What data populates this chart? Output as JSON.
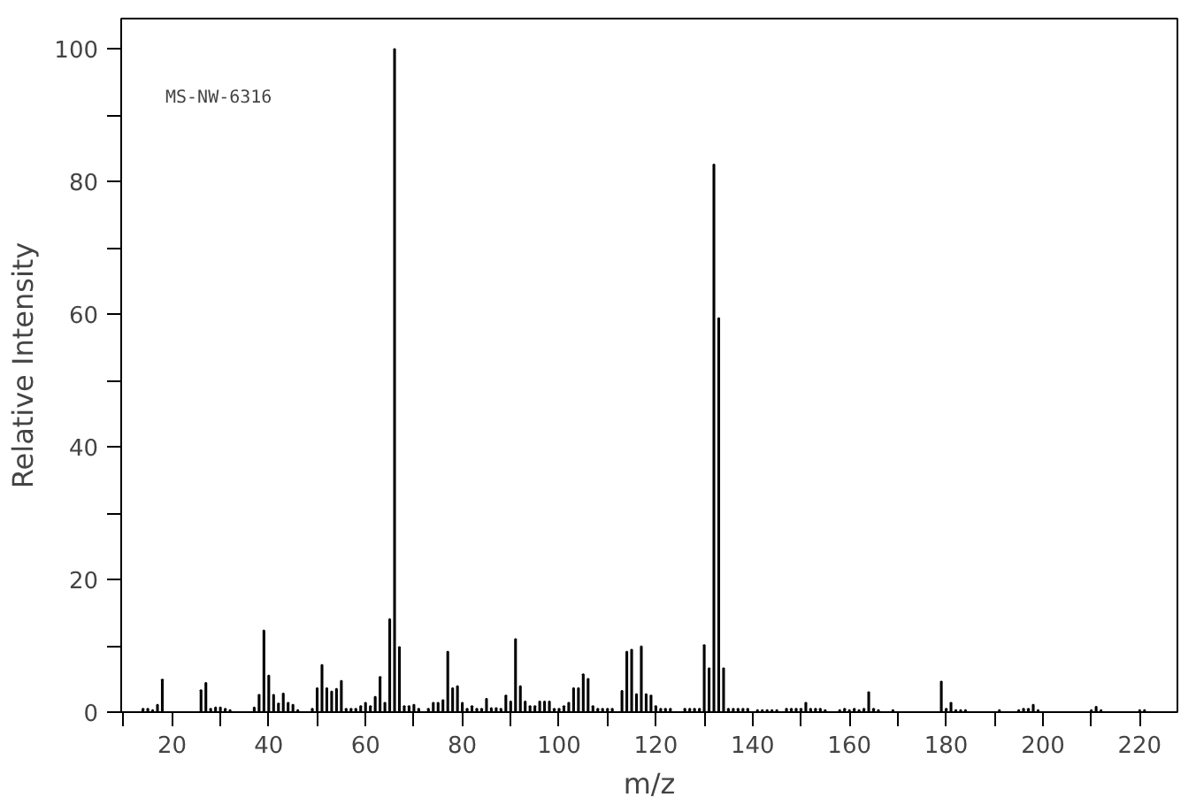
{
  "chart_data": {
    "type": "bar",
    "xlabel": "m/z",
    "ylabel": "Relative Intensity",
    "annotations": [
      "MS-NW-6316"
    ],
    "x": [
      14,
      15,
      16,
      17,
      18,
      26,
      27,
      28,
      29,
      30,
      31,
      32,
      37,
      38,
      39,
      40,
      41,
      42,
      43,
      44,
      45,
      46,
      49,
      50,
      51,
      52,
      53,
      54,
      55,
      56,
      57,
      58,
      59,
      60,
      61,
      62,
      63,
      64,
      65,
      66,
      67,
      68,
      69,
      70,
      71,
      73,
      74,
      75,
      76,
      77,
      78,
      79,
      80,
      81,
      82,
      83,
      84,
      85,
      86,
      87,
      88,
      89,
      90,
      91,
      92,
      93,
      94,
      95,
      96,
      97,
      98,
      99,
      100,
      101,
      102,
      103,
      104,
      105,
      106,
      107,
      108,
      109,
      110,
      111,
      113,
      114,
      115,
      116,
      117,
      118,
      119,
      120,
      121,
      122,
      123,
      126,
      127,
      128,
      129,
      130,
      131,
      132,
      133,
      134,
      135,
      136,
      137,
      138,
      139,
      141,
      142,
      143,
      144,
      145,
      147,
      148,
      149,
      150,
      151,
      152,
      153,
      154,
      155,
      158,
      159,
      160,
      161,
      162,
      163,
      164,
      165,
      166,
      169,
      179,
      180,
      181,
      182,
      183,
      184,
      191,
      195,
      196,
      197,
      198,
      199,
      210,
      211,
      212,
      220,
      221
    ],
    "values": [
      0.5,
      0.5,
      0.3,
      1.1,
      4.9,
      3.3,
      4.4,
      0.5,
      0.7,
      0.7,
      0.5,
      0.3,
      0.7,
      2.6,
      12.3,
      5.5,
      2.6,
      1.3,
      2.8,
      1.4,
      1.1,
      0.3,
      0.5,
      3.6,
      7.1,
      3.6,
      3.1,
      3.5,
      4.7,
      0.5,
      0.5,
      0.5,
      0.9,
      1.4,
      0.9,
      2.3,
      5.3,
      1.4,
      14,
      100,
      9.8,
      0.9,
      0.9,
      1.1,
      0.5,
      0.5,
      1.4,
      1.4,
      1.8,
      9.1,
      3.6,
      3.9,
      1.4,
      0.5,
      0.9,
      0.5,
      0.5,
      2,
      0.6,
      0.6,
      0.5,
      2.5,
      1.6,
      11,
      3.9,
      1.6,
      0.9,
      0.9,
      1.6,
      1.6,
      1.6,
      0.5,
      0.5,
      0.9,
      1.4,
      3.6,
      3.6,
      5.7,
      5,
      0.9,
      0.5,
      0.5,
      0.5,
      0.5,
      3.2,
      9.1,
      9.4,
      2.7,
      9.9,
      2.7,
      2.5,
      0.9,
      0.5,
      0.5,
      0.5,
      0.5,
      0.5,
      0.5,
      0.5,
      10.1,
      6.6,
      82.6,
      59.4,
      6.6,
      0.5,
      0.5,
      0.5,
      0.5,
      0.5,
      0.3,
      0.3,
      0.3,
      0.3,
      0.3,
      0.5,
      0.5,
      0.5,
      0.5,
      1.4,
      0.5,
      0.5,
      0.5,
      0.3,
      0.3,
      0.5,
      0.3,
      0.5,
      0.3,
      0.5,
      3,
      0.5,
      0.3,
      0.3,
      4.6,
      0.5,
      1.4,
      0.3,
      0.3,
      0.3,
      0.3,
      0.3,
      0.5,
      0.5,
      1.1,
      0.3,
      0.3,
      0.8,
      0.3,
      0.3,
      0.3
    ],
    "color": "#000000",
    "xlim": [
      9.5,
      227.8
    ],
    "ylim": [
      0,
      104.6
    ],
    "xticks": [
      {
        "value": 10,
        "label": null
      },
      20,
      {
        "value": 30,
        "label": null
      },
      40,
      {
        "value": 50,
        "label": null
      },
      60,
      {
        "value": 70,
        "label": null
      },
      80,
      {
        "value": 90,
        "label": null
      },
      100,
      {
        "value": 110,
        "label": null
      },
      120,
      {
        "value": 130,
        "label": null
      },
      140,
      {
        "value": 150,
        "label": null
      },
      160,
      {
        "value": 170,
        "label": null
      },
      180,
      {
        "value": 190,
        "label": null
      },
      200,
      {
        "value": 210,
        "label": null
      },
      220
    ],
    "yticks": [
      0,
      {
        "value": 10,
        "label": null
      },
      20,
      {
        "value": 30,
        "label": null
      },
      40,
      {
        "value": 50,
        "label": null
      },
      60,
      {
        "value": 70,
        "label": null
      },
      80,
      {
        "value": 90,
        "label": null
      },
      100
    ],
    "grid": false
  }
}
